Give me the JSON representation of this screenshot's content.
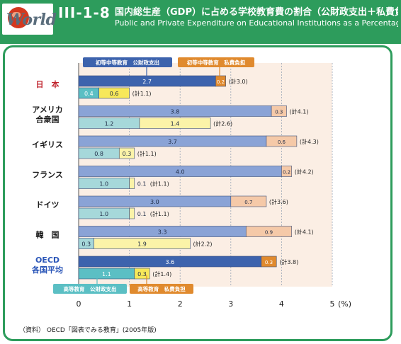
{
  "header": {
    "logo_text": "World",
    "figure_number": "III-1-8",
    "title_ja": "国内総生産（GDP）に占める学校教育費の割合（公財政支出＋私費負担）の国際比",
    "title_en": "Public and Private Expenditure on Educational Institutions as a Percentage of"
  },
  "colors": {
    "frame_green": "#2d9c5c",
    "primary_public": "#3d63ad",
    "primary_private": "#e08a2e",
    "tertiary_public": "#5bbfc4",
    "tertiary_private": "#f7e85a",
    "other_primary_public": "#8aa3d6",
    "other_primary_private": "#f5c9a8",
    "other_tertiary_public": "#a6d8da",
    "other_tertiary_private": "#fbf3a8",
    "plot_bg": "#fbeee4"
  },
  "source_note": "（資料） OECD「図表でみる教育」(2005年版)",
  "chart_data": {
    "type": "bar",
    "orientation": "horizontal",
    "stacked": true,
    "unit": "%",
    "xlim": [
      0,
      5
    ],
    "x_ticks": [
      "0",
      "1",
      "2",
      "3",
      "4",
      "5"
    ],
    "x_unit_label": "(%)",
    "legend": {
      "primary_public": "初等中等教育　公財政支出",
      "primary_private": "初等中等教育　私費負担",
      "tertiary_public": "高等教育　公財政支出",
      "tertiary_private": "高等教育　私費負担"
    },
    "countries": [
      {
        "name": "日　本",
        "highlight": true,
        "primary": {
          "public": 2.7,
          "private": 0.2,
          "total": 3.0,
          "public_label": "2.7",
          "private_label": "0.2",
          "total_label": "(計3.0)"
        },
        "tertiary": {
          "public": 0.4,
          "private": 0.6,
          "total": 1.1,
          "public_label": "0.4",
          "private_label": "0.6",
          "total_label": "(計1.1)"
        }
      },
      {
        "name": "アメリカ合衆国",
        "name_lines": [
          "アメリカ",
          "合衆国"
        ],
        "highlight": false,
        "primary": {
          "public": 3.8,
          "private": 0.3,
          "total": 4.1,
          "public_label": "3.8",
          "private_label": "0.3",
          "total_label": "(計4.1)"
        },
        "tertiary": {
          "public": 1.2,
          "private": 1.4,
          "total": 2.6,
          "public_label": "1.2",
          "private_label": "1.4",
          "total_label": "(計2.6)"
        }
      },
      {
        "name": "イギリス",
        "highlight": false,
        "primary": {
          "public": 3.7,
          "private": 0.6,
          "total": 4.3,
          "public_label": "3.7",
          "private_label": "0.6",
          "total_label": "(計4.3)"
        },
        "tertiary": {
          "public": 0.8,
          "private": 0.3,
          "total": 1.1,
          "public_label": "0.8",
          "private_label": "0.3",
          "total_label": "(計1.1)"
        }
      },
      {
        "name": "フランス",
        "highlight": false,
        "primary": {
          "public": 4.0,
          "private": 0.2,
          "total": 4.2,
          "public_label": "4.0",
          "private_label": "0.2",
          "total_label": "(計4.2)"
        },
        "tertiary": {
          "public": 1.0,
          "private": 0.1,
          "total": 1.1,
          "public_label": "1.0",
          "private_label": "0.1",
          "total_label": "(計1.1)"
        }
      },
      {
        "name": "ドイツ",
        "highlight": false,
        "primary": {
          "public": 3.0,
          "private": 0.7,
          "total": 3.6,
          "public_label": "3.0",
          "private_label": "0.7",
          "total_label": "(計3.6)"
        },
        "tertiary": {
          "public": 1.0,
          "private": 0.1,
          "total": 1.1,
          "public_label": "1.0",
          "private_label": "0.1",
          "total_label": "(計1.1)"
        }
      },
      {
        "name": "韓　国",
        "highlight": false,
        "primary": {
          "public": 3.3,
          "private": 0.9,
          "total": 4.1,
          "public_label": "3.3",
          "private_label": "0.9",
          "total_label": "(計4.1)"
        },
        "tertiary": {
          "public": 0.3,
          "private": 1.9,
          "total": 2.2,
          "public_label": "0.3",
          "private_label": "1.9",
          "total_label": "(計2.2)"
        }
      },
      {
        "name": "OECD各国平均",
        "name_lines": [
          "OECD",
          "各国平均"
        ],
        "highlight": true,
        "primary": {
          "public": 3.6,
          "private": 0.3,
          "total": 3.8,
          "public_label": "3.6",
          "private_label": "0.3",
          "total_label": "(計3.8)"
        },
        "tertiary": {
          "public": 1.1,
          "private": 0.3,
          "total": 1.4,
          "public_label": "1.1",
          "private_label": "0.3",
          "total_label": "(計1.4)"
        }
      }
    ]
  }
}
